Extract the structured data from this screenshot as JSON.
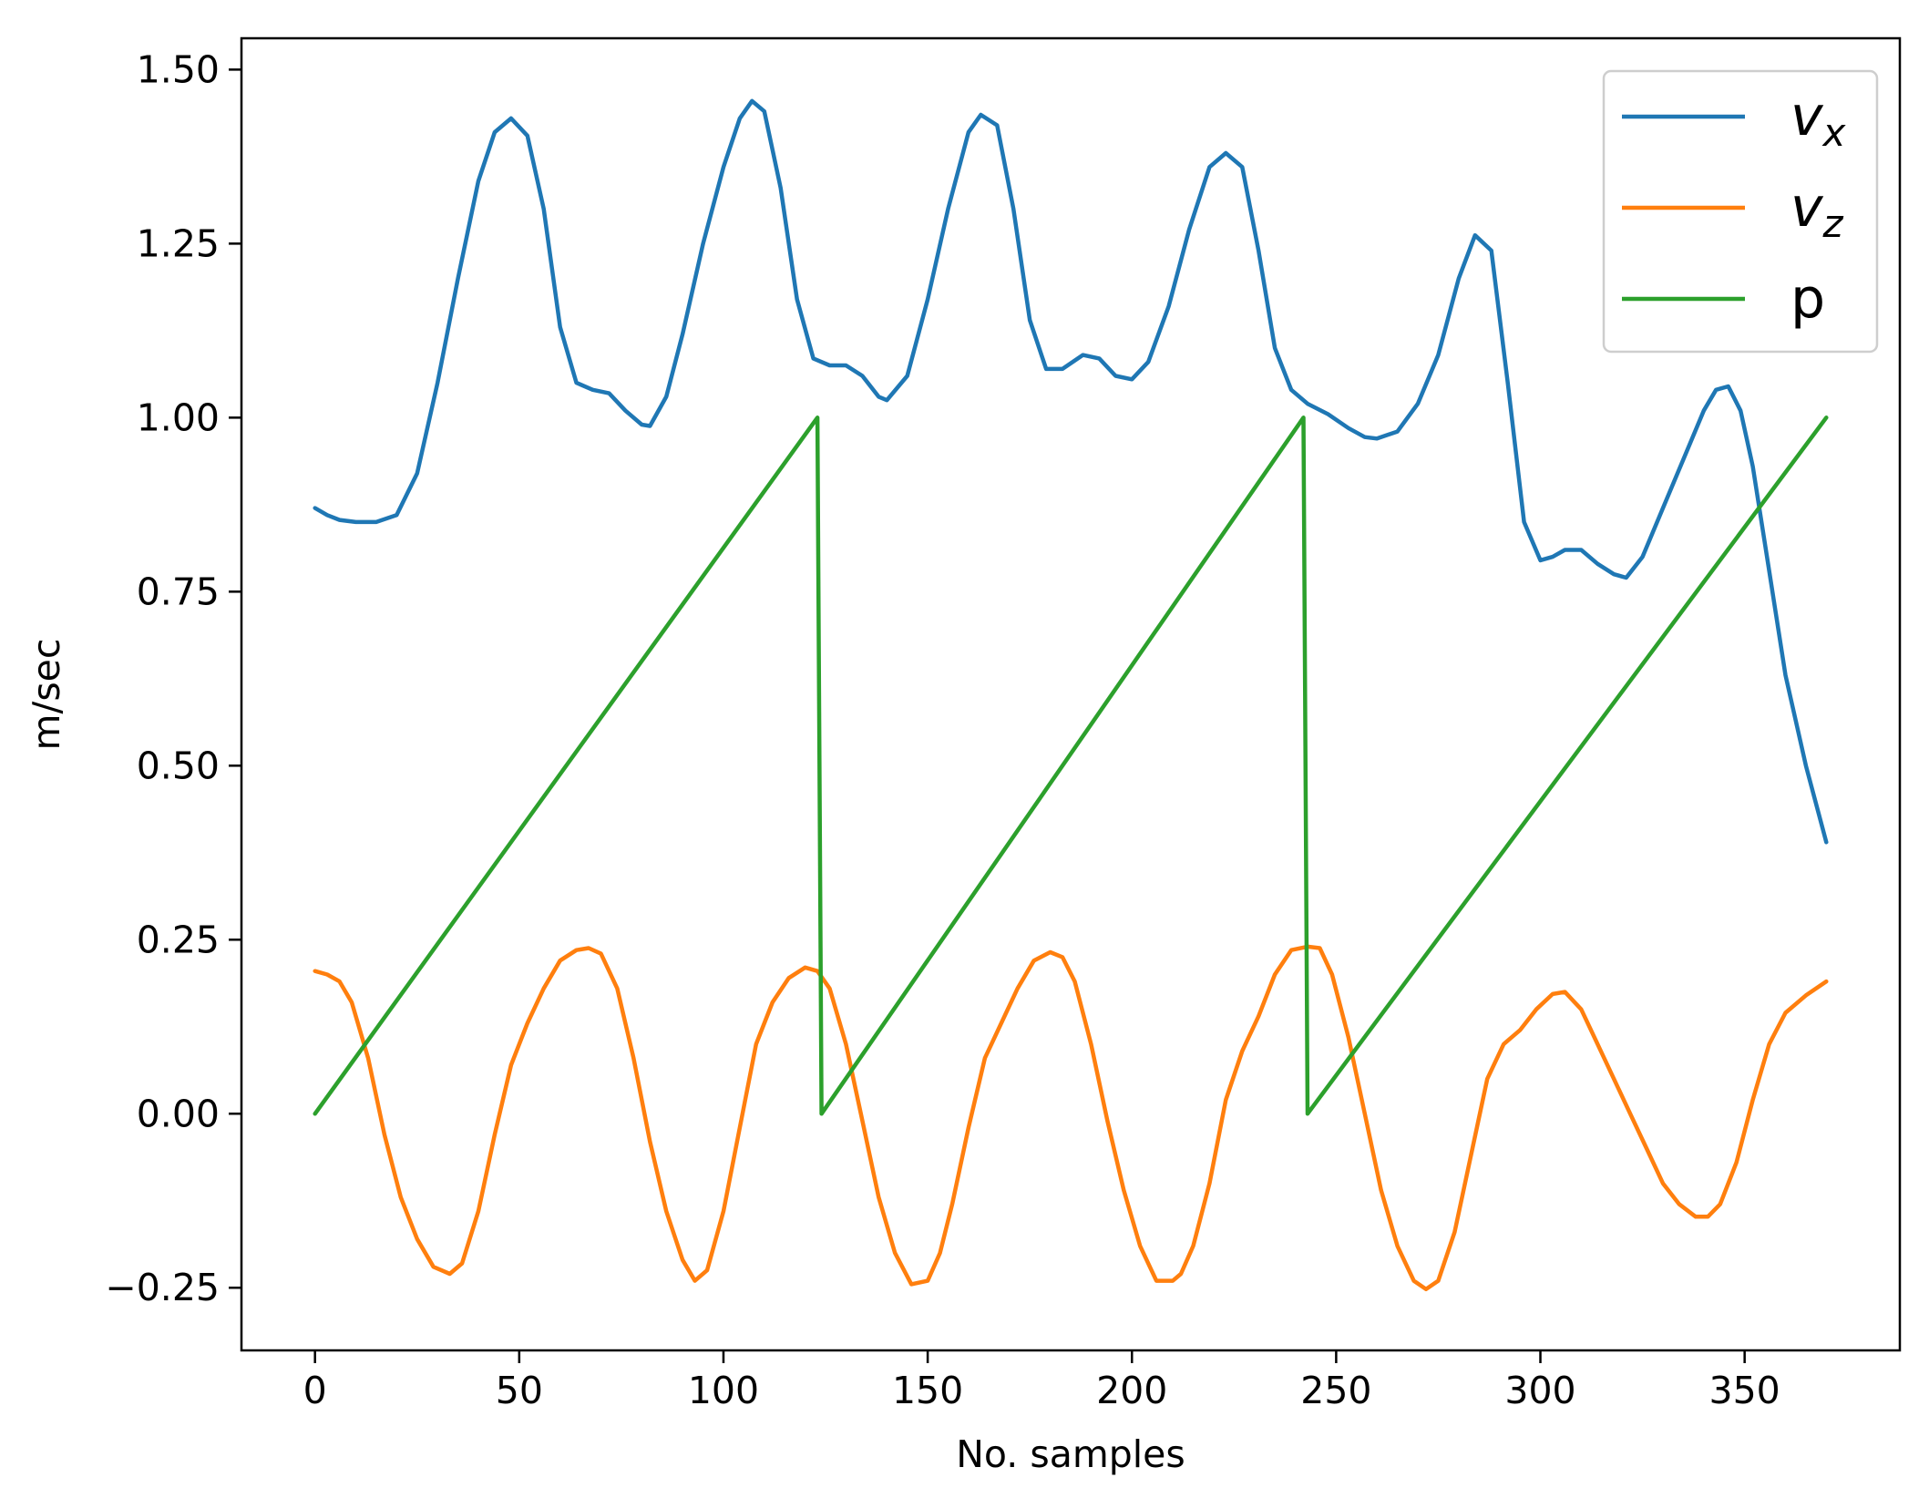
{
  "chart_data": {
    "type": "line",
    "title": "",
    "xlabel": "No. samples",
    "ylabel": "m/sec",
    "xlim": [
      -18,
      388
    ],
    "ylim": [
      -0.34,
      1.545
    ],
    "xticks": [
      0,
      50,
      100,
      150,
      200,
      250,
      300,
      350
    ],
    "xtick_labels": [
      "0",
      "50",
      "100",
      "150",
      "200",
      "250",
      "300",
      "350"
    ],
    "yticks": [
      -0.25,
      0.0,
      0.25,
      0.5,
      0.75,
      1.0,
      1.25,
      1.5
    ],
    "ytick_labels": [
      "−0.25",
      "0.00",
      "0.25",
      "0.50",
      "0.75",
      "1.00",
      "1.25",
      "1.50"
    ],
    "grid": false,
    "legend_position": "top-right",
    "series": [
      {
        "name": "v",
        "subscript": "x",
        "color": "#1f77b4",
        "x": [
          0,
          3,
          6,
          10,
          15,
          20,
          25,
          30,
          35,
          40,
          44,
          48,
          52,
          56,
          60,
          64,
          68,
          72,
          76,
          80,
          82,
          86,
          90,
          95,
          100,
          104,
          107,
          110,
          114,
          118,
          122,
          126,
          130,
          134,
          138,
          140,
          145,
          150,
          155,
          160,
          163,
          167,
          171,
          175,
          179,
          183,
          188,
          192,
          196,
          200,
          204,
          209,
          214,
          219,
          223,
          227,
          231,
          235,
          239,
          243,
          248,
          253,
          257,
          260,
          265,
          270,
          275,
          280,
          284,
          288,
          292,
          296,
          300,
          303,
          306,
          310,
          314,
          318,
          321,
          325,
          330,
          335,
          340,
          343,
          346,
          349,
          352,
          356,
          360,
          365,
          370
        ],
        "values": [
          0.87,
          0.86,
          0.853,
          0.85,
          0.85,
          0.86,
          0.92,
          1.05,
          1.2,
          1.34,
          1.41,
          1.43,
          1.405,
          1.3,
          1.13,
          1.05,
          1.04,
          1.035,
          1.01,
          0.99,
          0.988,
          1.03,
          1.12,
          1.25,
          1.36,
          1.43,
          1.455,
          1.44,
          1.33,
          1.17,
          1.085,
          1.075,
          1.075,
          1.06,
          1.03,
          1.025,
          1.06,
          1.17,
          1.3,
          1.41,
          1.435,
          1.42,
          1.3,
          1.14,
          1.07,
          1.07,
          1.09,
          1.085,
          1.06,
          1.055,
          1.08,
          1.16,
          1.27,
          1.36,
          1.38,
          1.36,
          1.24,
          1.1,
          1.04,
          1.02,
          1.005,
          0.985,
          0.972,
          0.97,
          0.98,
          1.02,
          1.09,
          1.2,
          1.262,
          1.24,
          1.05,
          0.85,
          0.795,
          0.8,
          0.81,
          0.81,
          0.79,
          0.775,
          0.77,
          0.8,
          0.87,
          0.94,
          1.01,
          1.04,
          1.045,
          1.01,
          0.93,
          0.78,
          0.63,
          0.5,
          0.39
        ]
      },
      {
        "name": "v",
        "subscript": "z",
        "color": "#ff7f0e",
        "x": [
          0,
          3,
          6,
          9,
          13,
          17,
          21,
          25,
          29,
          33,
          36,
          40,
          44,
          48,
          52,
          56,
          60,
          64,
          67,
          70,
          74,
          78,
          82,
          86,
          90,
          93,
          96,
          100,
          104,
          108,
          112,
          116,
          120,
          123,
          126,
          130,
          134,
          138,
          142,
          146,
          150,
          153,
          156,
          160,
          164,
          168,
          172,
          176,
          180,
          183,
          186,
          190,
          194,
          198,
          202,
          206,
          210,
          212,
          215,
          219,
          223,
          227,
          231,
          235,
          239,
          243,
          246,
          249,
          253,
          257,
          261,
          265,
          269,
          272,
          275,
          279,
          283,
          287,
          291,
          295,
          299,
          303,
          306,
          310,
          314,
          318,
          322,
          326,
          330,
          334,
          338,
          341,
          344,
          348,
          352,
          356,
          360,
          365,
          370
        ],
        "values": [
          0.205,
          0.2,
          0.19,
          0.16,
          0.08,
          -0.03,
          -0.12,
          -0.18,
          -0.22,
          -0.23,
          -0.215,
          -0.14,
          -0.03,
          0.07,
          0.13,
          0.18,
          0.22,
          0.235,
          0.238,
          0.23,
          0.18,
          0.08,
          -0.04,
          -0.14,
          -0.21,
          -0.24,
          -0.225,
          -0.14,
          -0.02,
          0.1,
          0.16,
          0.195,
          0.21,
          0.205,
          0.18,
          0.1,
          -0.01,
          -0.12,
          -0.2,
          -0.245,
          -0.24,
          -0.2,
          -0.13,
          -0.02,
          0.08,
          0.13,
          0.18,
          0.22,
          0.232,
          0.225,
          0.19,
          0.1,
          -0.01,
          -0.11,
          -0.19,
          -0.24,
          -0.24,
          -0.23,
          -0.19,
          -0.1,
          0.02,
          0.09,
          0.14,
          0.2,
          0.235,
          0.24,
          0.238,
          0.2,
          0.11,
          0.0,
          -0.11,
          -0.19,
          -0.24,
          -0.252,
          -0.24,
          -0.17,
          -0.06,
          0.05,
          0.1,
          0.12,
          0.15,
          0.172,
          0.175,
          0.15,
          0.1,
          0.05,
          0.0,
          -0.05,
          -0.1,
          -0.13,
          -0.148,
          -0.148,
          -0.13,
          -0.07,
          0.02,
          0.1,
          0.145,
          0.17,
          0.19
        ]
      },
      {
        "name": "p",
        "subscript": "",
        "color": "#2ca02c",
        "x": [
          0,
          123,
          124,
          242,
          243,
          370
        ],
        "values": [
          0.0,
          1.0,
          0.0,
          1.0,
          0.0,
          1.0
        ]
      }
    ]
  }
}
